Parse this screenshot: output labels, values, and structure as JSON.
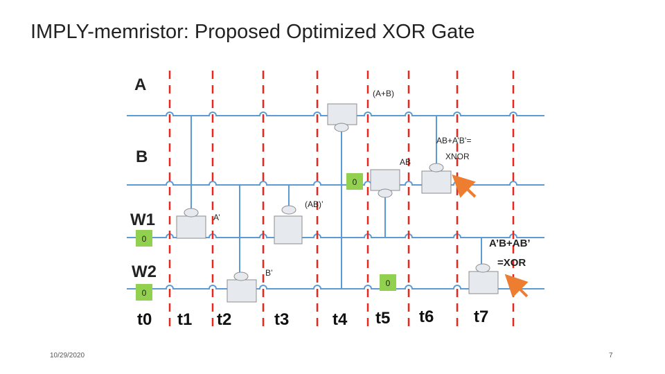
{
  "slide": {
    "title": "IMPLY-memristor: Proposed Optimized XOR Gate",
    "date": "10/29/2020",
    "page_number": "7"
  },
  "diagram": {
    "rows": [
      {
        "name": "A"
      },
      {
        "name": "B"
      },
      {
        "name": "W1",
        "initial": "0"
      },
      {
        "name": "W2",
        "initial": "0"
      }
    ],
    "time_steps": [
      "t0",
      "t1",
      "t2",
      "t3",
      "t4",
      "t5",
      "t6",
      "t7"
    ],
    "node_labels": {
      "a_not": "A’",
      "b_not": "B’",
      "ab_not": "(AB)’",
      "a_or_b": "(A+B)",
      "ab": "AB",
      "xnor_line1": "AB+A’B’=",
      "xnor_line2": "XNOR",
      "xor_line1": "A’B+AB’",
      "xor_line2": "=XOR"
    },
    "reset_values": {
      "w1_initial": "0",
      "w2_initial": "0",
      "b_reset_t4": "0",
      "w2_reset_t5": "0"
    },
    "colors": {
      "wire": "#5b9bd5",
      "time_divider": "#e8261c",
      "memristor_fill": "#e6e9ee",
      "memristor_stroke": "#8c8c8c",
      "reset_box": "#92d050",
      "arrow": "#ed7d31"
    }
  }
}
